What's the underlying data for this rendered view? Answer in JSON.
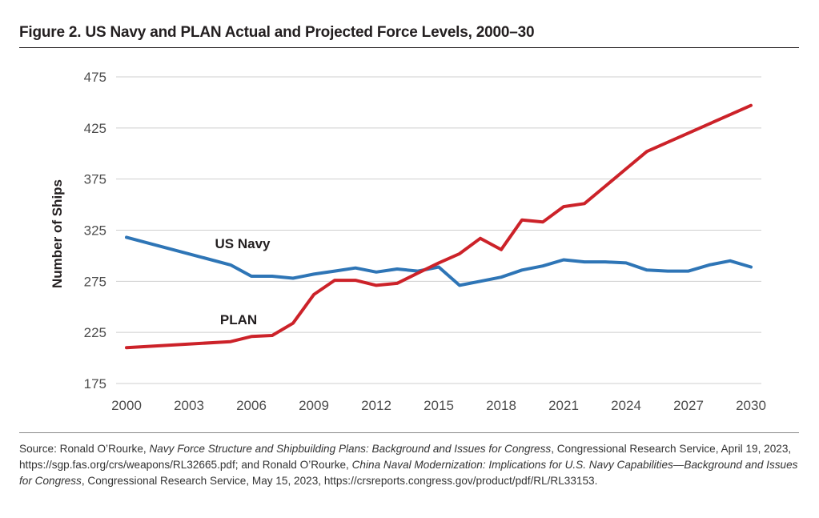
{
  "figure": {
    "title": "Figure 2. US Navy and PLAN Actual and Projected Force Levels, 2000–30"
  },
  "chart_data": {
    "type": "line",
    "title": "",
    "xlabel": "",
    "ylabel": "Number of Ships",
    "xlim": [
      2000,
      2030
    ],
    "ylim": [
      175,
      475
    ],
    "x_ticks": [
      "2000",
      "2003",
      "2006",
      "2009",
      "2012",
      "2015",
      "2018",
      "2021",
      "2024",
      "2027",
      "2030"
    ],
    "y_ticks": [
      "175",
      "225",
      "275",
      "325",
      "375",
      "425",
      "475"
    ],
    "grid": true,
    "legend": "none (series labelled directly on chart)",
    "series": [
      {
        "name": "US Navy",
        "color": "#2e75b6",
        "x": [
          2000,
          2005,
          2006,
          2007,
          2008,
          2009,
          2010,
          2011,
          2012,
          2013,
          2014,
          2015,
          2016,
          2017,
          2018,
          2019,
          2020,
          2021,
          2022,
          2023,
          2024,
          2025,
          2026,
          2027,
          2028,
          2029,
          2030
        ],
        "y": [
          318,
          291,
          280,
          280,
          278,
          282,
          285,
          288,
          284,
          287,
          285,
          289,
          271,
          275,
          279,
          286,
          290,
          296,
          294,
          294,
          293,
          286,
          285,
          285,
          291,
          295,
          289
        ]
      },
      {
        "name": "PLAN",
        "color": "#cc2229",
        "x": [
          2000,
          2005,
          2006,
          2007,
          2008,
          2009,
          2010,
          2011,
          2012,
          2013,
          2014,
          2015,
          2016,
          2017,
          2018,
          2019,
          2020,
          2021,
          2022,
          2023,
          2024,
          2025,
          2026,
          2027,
          2028,
          2029,
          2030
        ],
        "y": [
          210,
          216,
          221,
          222,
          234,
          262,
          276,
          276,
          271,
          273,
          283,
          293,
          302,
          317,
          306,
          335,
          333,
          348,
          351,
          368,
          385,
          402,
          411,
          420,
          429,
          438,
          447
        ]
      }
    ],
    "annotations": [
      {
        "text": "US Navy",
        "series": "US Navy"
      },
      {
        "text": "PLAN",
        "series": "PLAN"
      }
    ]
  },
  "source": {
    "prefix": "Source: Ronald O’Rourke, ",
    "italic1": "Navy Force Structure and Shipbuilding Plans: Background and Issues for Congress",
    "mid1": ", Congressional Research Service, April 19, 2023, https://sgp.fas.org/crs/weapons/RL32665.pdf; and Ronald O’Rourke, ",
    "italic2": "China Naval Modernization: Implications for U.S. Navy Capabilities—Background and Issues for Congress",
    "suffix": ", Congressional Research Service, May 15, 2023, https://crsreports.congress.gov/product/pdf/RL/RL33153."
  }
}
